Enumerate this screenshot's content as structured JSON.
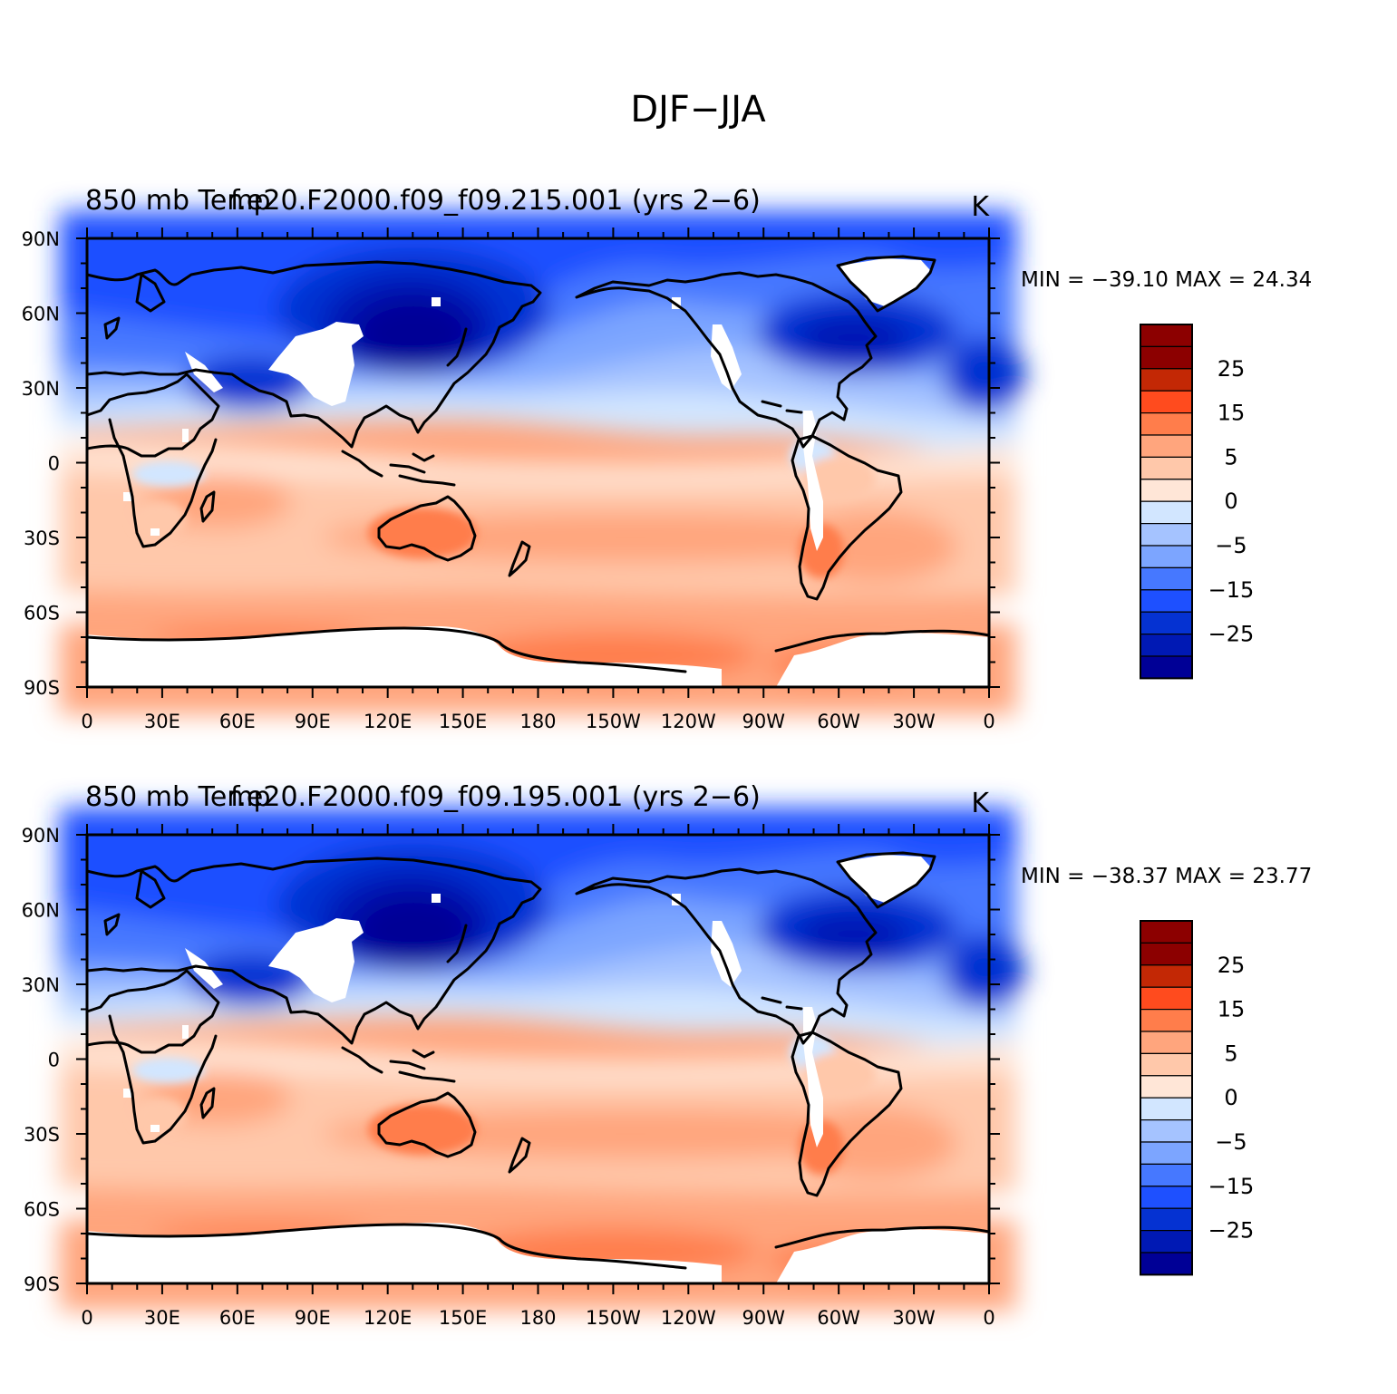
{
  "figure": {
    "title": "DJF−JJA"
  },
  "colors": {
    "palette": [
      "#000096",
      "#0019b4",
      "#0532d2",
      "#1e50ff",
      "#4678ff",
      "#7ca5ff",
      "#a5c3ff",
      "#d2e6ff",
      "#ffe6d7",
      "#ffc8aa",
      "#ffa57d",
      "#ff7d4b",
      "#ff4b1e",
      "#c32805",
      "#8c0000"
    ],
    "land_missing": "#ffffff",
    "coastline": "#000000"
  },
  "axes": {
    "lat_labels": [
      "90N",
      "60N",
      "30N",
      "0",
      "30S",
      "60S",
      "90S"
    ],
    "lon_labels": [
      "0",
      "30E",
      "60E",
      "90E",
      "120E",
      "150E",
      "180",
      "150W",
      "120W",
      "90W",
      "60W",
      "30W",
      "0"
    ]
  },
  "colorbar": {
    "labels": [
      "25",
      "15",
      "5",
      "0",
      "−5",
      "−15",
      "−25"
    ]
  },
  "panels": [
    {
      "left_string_1": "850 mb Temp",
      "left_string_2": "f.e20.F2000.f09_f09.215.001 (yrs 2−6)",
      "units": "K",
      "stats": "MIN = −39.10  MAX =   24.34"
    },
    {
      "left_string_1": "850 mb Temp",
      "left_string_2": "f.e20.F2000.f09_f09.195.001 (yrs 2−6)",
      "units": "K",
      "stats": "MIN = −38.37  MAX =   23.77"
    }
  ],
  "chart_data": {
    "type": "heatmap",
    "projection": "cylindrical-equidistant",
    "field": "850 mb Temp",
    "difference": "DJF−JJA",
    "units": "K",
    "contour_levels": [
      -35,
      -30,
      -25,
      -20,
      -15,
      -10,
      -5,
      0,
      5,
      10,
      15,
      20,
      25,
      30
    ],
    "xlim": [
      0,
      360
    ],
    "ylim": [
      -90,
      90
    ],
    "series": [
      {
        "name": "f.e20.F2000.f09_f09.215.001 (yrs 2−6)",
        "min": -39.1,
        "max": 24.34
      },
      {
        "name": "f.e20.F2000.f09_f09.195.001 (yrs 2−6)",
        "min": -38.37,
        "max": 23.77
      }
    ]
  }
}
